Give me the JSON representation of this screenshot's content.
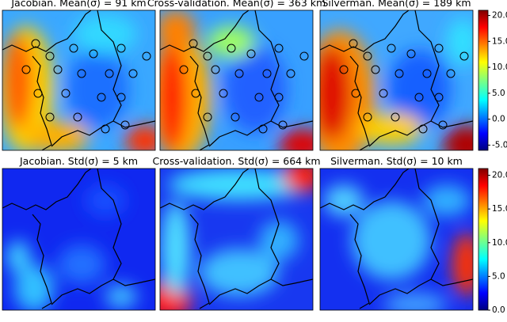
{
  "figure": {
    "panels": [
      {
        "title": "Jacobian. Mean(σ) = 91 km"
      },
      {
        "title": "Cross-validation. Mean(σ) = 363 km"
      },
      {
        "title": "Silverman. Mean(σ) = 189 km"
      },
      {
        "title": "Jacobian. Std(σ) = 5 km"
      },
      {
        "title": "Cross-validation. Std(σ) = 664 km"
      },
      {
        "title": "Silverman. Std(σ) = 10 km"
      }
    ],
    "colorbars": [
      {
        "lim": [
          -6,
          21
        ],
        "ticks": [
          {
            "value": 20,
            "label": "20.0"
          },
          {
            "value": 15,
            "label": "15.0"
          },
          {
            "value": 10,
            "label": "10.0"
          },
          {
            "value": 5,
            "label": "5.0"
          },
          {
            "value": 0,
            "label": "0.0"
          },
          {
            "value": -5,
            "label": "-5.0"
          }
        ]
      },
      {
        "lim": [
          0,
          21
        ],
        "ticks": [
          {
            "value": 20,
            "label": "20.0"
          },
          {
            "value": 15,
            "label": "15.0"
          },
          {
            "value": 10,
            "label": "10.0"
          },
          {
            "value": 5,
            "label": "5.0"
          },
          {
            "value": 0,
            "label": "0.0"
          }
        ]
      }
    ]
  }
}
